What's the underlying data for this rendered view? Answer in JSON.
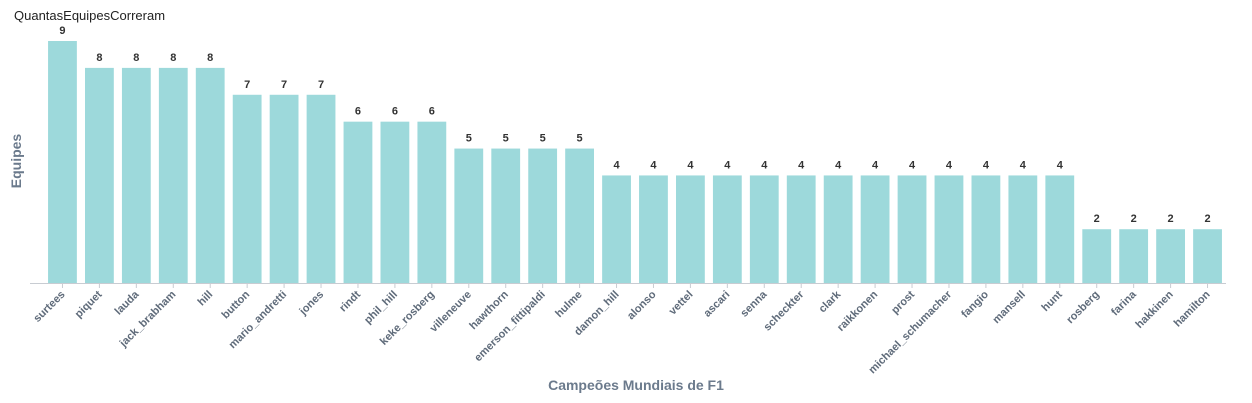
{
  "chart_data": {
    "type": "bar",
    "title": "QuantasEquipesCorreram",
    "xlabel": "Campeões Mundiais de F1",
    "ylabel": "Equipes",
    "categories": [
      "surtees",
      "piquet",
      "lauda",
      "jack_brabham",
      "hill",
      "button",
      "mario_andretti",
      "jones",
      "rindt",
      "phil_hill",
      "keke_rosberg",
      "villeneuve",
      "hawthorn",
      "emerson_fittipaldi",
      "hulme",
      "damon_hill",
      "alonso",
      "vettel",
      "ascari",
      "senna",
      "scheckter",
      "clark",
      "raikkonen",
      "prost",
      "michael_schumacher",
      "fangio",
      "mansell",
      "hunt",
      "rosberg",
      "farina",
      "hakkinen",
      "hamilton"
    ],
    "values": [
      9,
      8,
      8,
      8,
      8,
      7,
      7,
      7,
      6,
      6,
      6,
      5,
      5,
      5,
      5,
      4,
      4,
      4,
      4,
      4,
      4,
      4,
      4,
      4,
      4,
      4,
      4,
      4,
      2,
      2,
      2,
      2
    ],
    "ylim": [
      0,
      9
    ],
    "grid": false,
    "colors": {
      "bar": "#9dd9db",
      "axis": "#c8ccd2"
    }
  }
}
